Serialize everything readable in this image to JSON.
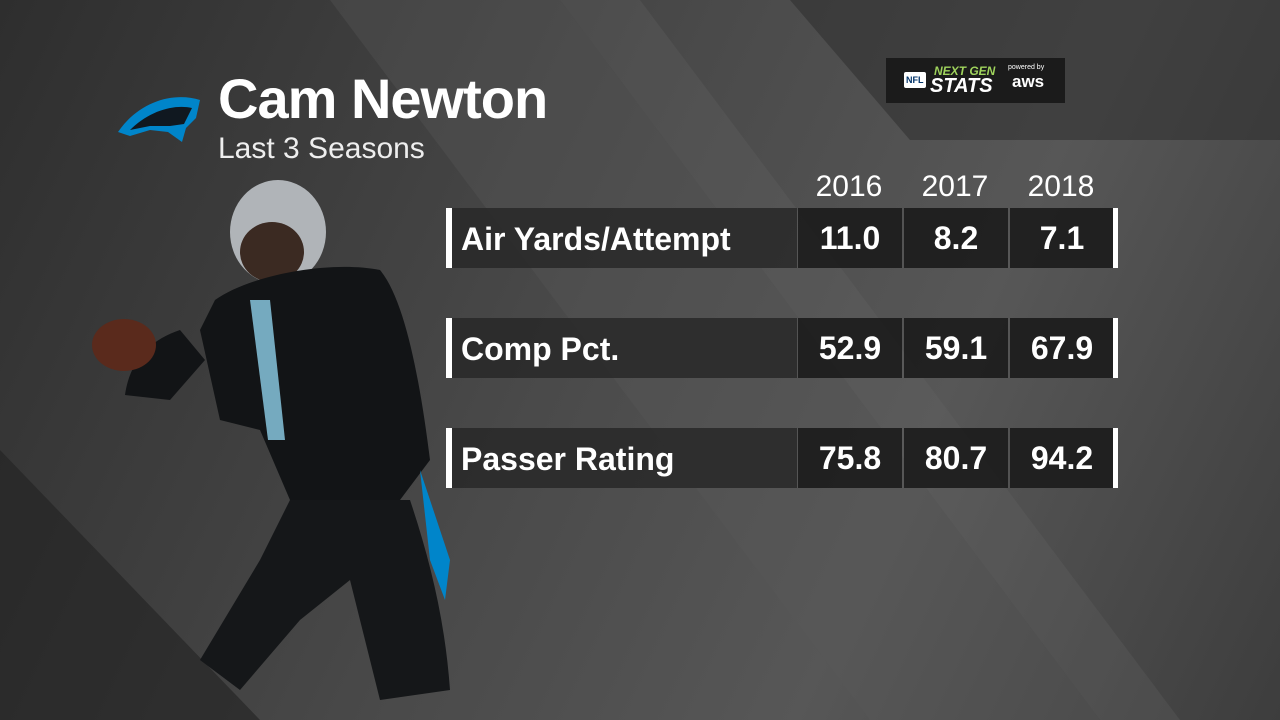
{
  "header": {
    "name": "Cam Newton",
    "subtitle": "Last 3 Seasons"
  },
  "badge": {
    "league": "NFL",
    "line1": "NEXT GEN",
    "line2": "STATS",
    "powered": "powered by",
    "sponsor": "aws"
  },
  "table": {
    "columns": [
      "2016",
      "2017",
      "2018"
    ],
    "rows": [
      {
        "label": "Air Yards/Attempt",
        "values": [
          "11.0",
          "8.2",
          "7.1"
        ]
      },
      {
        "label": "Comp Pct.",
        "values": [
          "52.9",
          "59.1",
          "67.9"
        ]
      },
      {
        "label": "Passer Rating",
        "values": [
          "75.8",
          "80.7",
          "94.2"
        ]
      }
    ]
  }
}
